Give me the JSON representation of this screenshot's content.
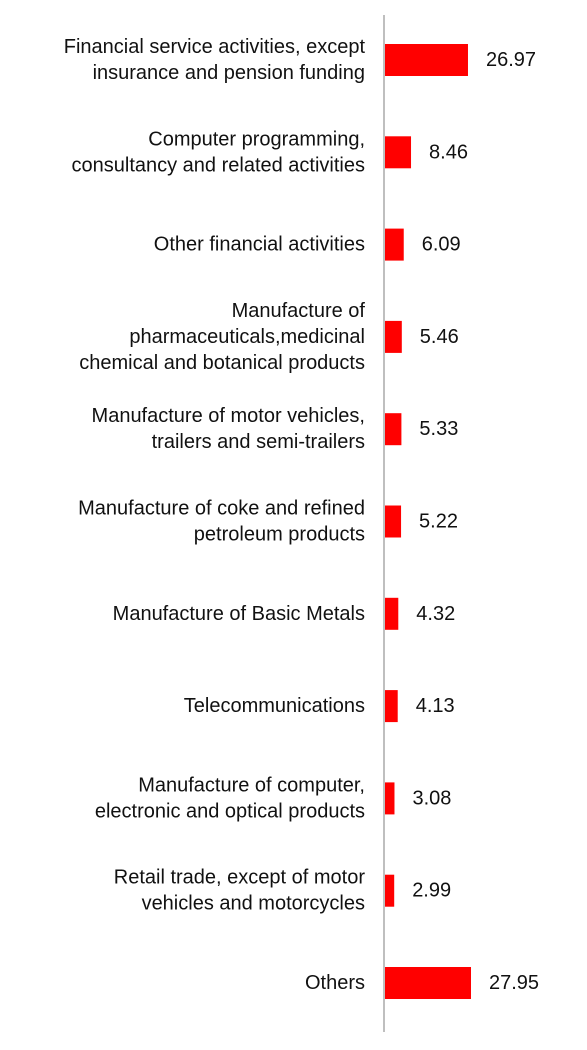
{
  "chart_data": {
    "type": "bar",
    "orientation": "horizontal",
    "bar_color": "#ff0000",
    "axis_color": "#bfbfbf",
    "grid": false,
    "categories": [
      "Financial service activities, except insurance and pension funding",
      "Computer programming, consultancy and related activities",
      "Other financial activities",
      "Manufacture of pharmaceuticals,medicinal chemical and botanical products",
      "Manufacture of motor vehicles, trailers and semi-trailers",
      "Manufacture of coke and refined petroleum products",
      "Manufacture of Basic Metals",
      "Telecommunications",
      "Manufacture of computer, electronic and optical products",
      "Retail trade, except of motor vehicles and motorcycles",
      "Others"
    ],
    "category_lines": [
      [
        "Financial service activities, except",
        "insurance and pension funding"
      ],
      [
        "Computer programming,",
        "consultancy and related activities"
      ],
      [
        "Other financial activities"
      ],
      [
        "Manufacture of",
        "pharmaceuticals,medicinal",
        "chemical and botanical products"
      ],
      [
        "Manufacture of motor vehicles,",
        "trailers and semi-trailers"
      ],
      [
        "Manufacture of coke and refined",
        "petroleum products"
      ],
      [
        "Manufacture of Basic Metals"
      ],
      [
        "Telecommunications"
      ],
      [
        "Manufacture of computer,",
        "electronic and optical products"
      ],
      [
        "Retail trade, except of motor",
        "vehicles and motorcycles"
      ],
      [
        "Others"
      ]
    ],
    "values": [
      26.97,
      8.46,
      6.09,
      5.46,
      5.33,
      5.22,
      4.32,
      4.13,
      3.08,
      2.99,
      27.95
    ],
    "value_labels": [
      "26.97",
      "8.46",
      "6.09",
      "5.46",
      "5.33",
      "5.22",
      "4.32",
      "4.13",
      "3.08",
      "2.99",
      "27.95"
    ]
  }
}
